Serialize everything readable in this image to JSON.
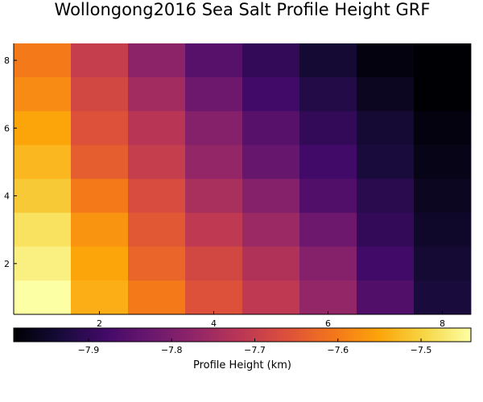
{
  "chart_data": {
    "type": "heatmap",
    "title": "Wollongong2016 Sea Salt Profile Height GRF",
    "xlabel": "",
    "ylabel": "",
    "colorbar_label": "Profile Height (km)",
    "colormap": "inferno",
    "x": [
      1,
      2,
      3,
      4,
      5,
      6,
      7,
      8
    ],
    "y": [
      1,
      2,
      3,
      4,
      5,
      6,
      7,
      8
    ],
    "xlim": [
      0.5,
      8.5
    ],
    "ylim": [
      0.5,
      8.5
    ],
    "x_ticks": [
      2,
      4,
      6,
      8
    ],
    "y_ticks": [
      2,
      4,
      6,
      8
    ],
    "clim": [
      -7.99,
      -7.44
    ],
    "colorbar_ticks": [
      -7.9,
      -7.8,
      -7.7,
      -7.6,
      -7.5
    ],
    "colorbar_tick_labels": [
      "−7.9",
      "−7.8",
      "−7.7",
      "−7.6",
      "−7.5"
    ],
    "grid": false,
    "values_rows_top_to_bottom": [
      [
        -7.6,
        -7.7,
        -7.78,
        -7.85,
        -7.9,
        -7.94,
        -7.98,
        -7.99
      ],
      [
        -7.58,
        -7.68,
        -7.75,
        -7.82,
        -7.88,
        -7.92,
        -7.96,
        -7.99
      ],
      [
        -7.55,
        -7.66,
        -7.72,
        -7.79,
        -7.85,
        -7.9,
        -7.94,
        -7.98
      ],
      [
        -7.53,
        -7.64,
        -7.7,
        -7.77,
        -7.83,
        -7.88,
        -7.93,
        -7.97
      ],
      [
        -7.51,
        -7.6,
        -7.67,
        -7.74,
        -7.79,
        -7.86,
        -7.91,
        -7.96
      ],
      [
        -7.48,
        -7.57,
        -7.65,
        -7.71,
        -7.76,
        -7.82,
        -7.9,
        -7.95
      ],
      [
        -7.46,
        -7.55,
        -7.63,
        -7.68,
        -7.73,
        -7.79,
        -7.88,
        -7.94
      ],
      [
        -7.44,
        -7.54,
        -7.6,
        -7.66,
        -7.71,
        -7.77,
        -7.86,
        -7.93
      ]
    ]
  }
}
